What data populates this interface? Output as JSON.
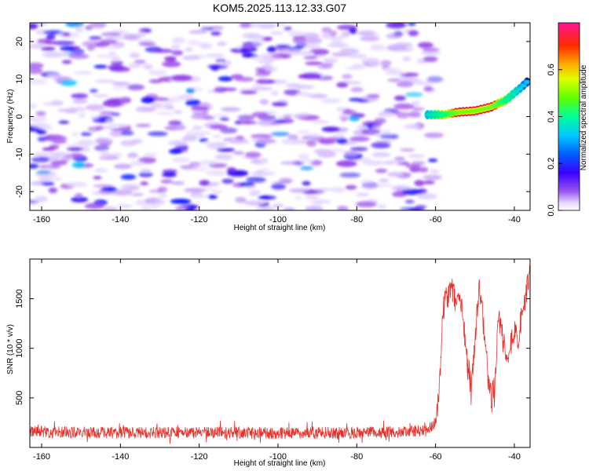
{
  "figure": {
    "title": "KOM5.2025.113.12.33.G07"
  },
  "chart_data": [
    {
      "type": "heatmap",
      "xlabel": "Height of straight line (km)",
      "ylabel": "Frequency (Hz)",
      "xlim": [
        -163,
        -36
      ],
      "ylim": [
        -25,
        25
      ],
      "xticks": [
        -160,
        -140,
        -120,
        -100,
        -80,
        -60,
        -40
      ],
      "yticks": [
        -20,
        -10,
        0,
        10,
        20
      ],
      "colorbar": {
        "label": "Normalized spectral amplitude",
        "range": [
          0.0,
          0.8
        ],
        "ticks": [
          "0.0",
          "0.2",
          "0.4",
          "0.6"
        ],
        "colors": [
          "#ffffff",
          "#d9c2ff",
          "#8a2be2",
          "#0000ff",
          "#00bfff",
          "#00ff7f",
          "#7fff00",
          "#ffff00",
          "#ff8c00",
          "#ff0000",
          "#ff1493"
        ]
      },
      "background_noise": {
        "x_range": [
          -163,
          -60
        ],
        "y_range": [
          -25,
          25
        ],
        "typical_amplitude": [
          0.05,
          0.25
        ]
      },
      "signal_ridge": {
        "x": [
          -62,
          -58,
          -54,
          -50,
          -46,
          -42,
          -38,
          -36
        ],
        "freq": [
          0.5,
          0.5,
          1.2,
          1.5,
          2.5,
          4.5,
          8,
          10
        ],
        "amplitude": [
          0.35,
          0.5,
          0.75,
          0.75,
          0.75,
          0.45,
          0.3,
          0.25
        ]
      },
      "grid": false
    },
    {
      "type": "line",
      "xlabel": "Height of straight line (km)",
      "ylabel": "SNR (10 * v/v)",
      "xlim": [
        -163,
        -36
      ],
      "ylim": [
        0,
        1900
      ],
      "xticks": [
        -160,
        -140,
        -120,
        -100,
        -80,
        -60,
        -40
      ],
      "yticks": [
        500,
        1000,
        1500
      ],
      "color": "#e8302a",
      "grid": false,
      "series": [
        {
          "x": [
            -163,
            -150,
            -140,
            -120,
            -100,
            -80,
            -70,
            -62,
            -60,
            -59,
            -58.5,
            -58,
            -57,
            -56,
            -55,
            -54,
            -53,
            -52,
            -51,
            -50,
            -49,
            -48,
            -47,
            -46,
            -45,
            -44,
            -43,
            -42,
            -41,
            -40,
            -39,
            -38,
            -37,
            -36
          ],
          "values": [
            160,
            150,
            150,
            150,
            145,
            150,
            155,
            170,
            260,
            600,
            1100,
            1400,
            1550,
            1600,
            1500,
            1550,
            1300,
            900,
            600,
            1100,
            1600,
            1300,
            800,
            500,
            600,
            1300,
            1150,
            900,
            1050,
            1150,
            1100,
            1350,
            1550,
            1750
          ],
          "noise_amplitude": 60
        }
      ]
    }
  ]
}
